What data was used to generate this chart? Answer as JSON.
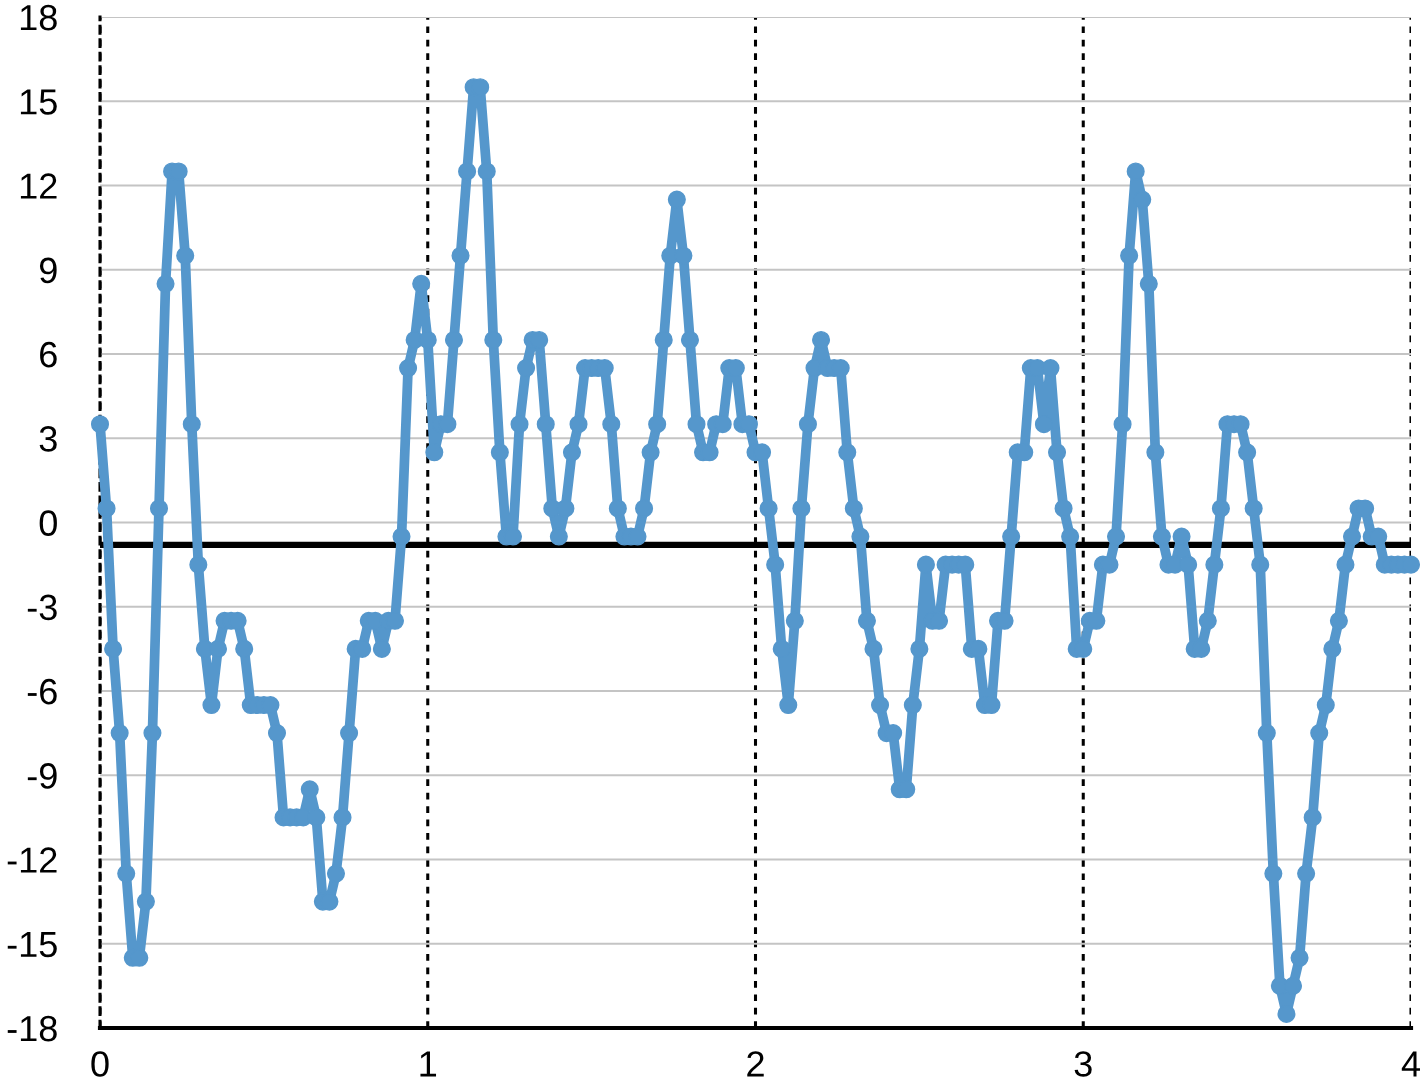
{
  "chart_data": {
    "type": "line",
    "x": [
      0,
      0.02,
      0.04,
      0.06,
      0.08,
      0.1,
      0.12,
      0.14,
      0.16,
      0.18,
      0.2,
      0.22,
      0.24,
      0.26,
      0.28,
      0.3,
      0.32,
      0.34,
      0.36,
      0.38,
      0.4,
      0.42,
      0.44,
      0.46,
      0.48,
      0.5,
      0.52,
      0.54,
      0.56,
      0.58,
      0.6,
      0.62,
      0.64,
      0.66,
      0.68,
      0.7,
      0.72,
      0.74,
      0.76,
      0.78,
      0.8,
      0.82,
      0.84,
      0.86,
      0.88,
      0.9,
      0.92,
      0.94,
      0.96,
      0.98,
      1,
      1.02,
      1.04,
      1.06,
      1.08,
      1.1,
      1.12,
      1.14,
      1.16,
      1.18,
      1.2,
      1.22,
      1.24,
      1.26,
      1.28,
      1.3,
      1.32,
      1.34,
      1.36,
      1.38,
      1.4,
      1.42,
      1.44,
      1.46,
      1.48,
      1.5,
      1.52,
      1.54,
      1.56,
      1.58,
      1.6,
      1.62,
      1.64,
      1.66,
      1.68,
      1.7,
      1.72,
      1.74,
      1.76,
      1.78,
      1.8,
      1.82,
      1.84,
      1.86,
      1.88,
      1.9,
      1.92,
      1.94,
      1.96,
      1.98,
      2,
      2.02,
      2.04,
      2.06,
      2.08,
      2.1,
      2.12,
      2.14,
      2.16,
      2.18,
      2.2,
      2.22,
      2.24,
      2.26,
      2.28,
      2.3,
      2.32,
      2.34,
      2.36,
      2.38,
      2.4,
      2.42,
      2.44,
      2.46,
      2.48,
      2.5,
      2.52,
      2.54,
      2.56,
      2.58,
      2.6,
      2.62,
      2.64,
      2.66,
      2.68,
      2.7,
      2.72,
      2.74,
      2.76,
      2.78,
      2.8,
      2.82,
      2.84,
      2.86,
      2.88,
      2.9,
      2.92,
      2.94,
      2.96,
      2.98,
      3,
      3.02,
      3.04,
      3.06,
      3.08,
      3.1,
      3.12,
      3.14,
      3.16,
      3.18,
      3.2,
      3.22,
      3.24,
      3.26,
      3.28,
      3.3,
      3.32,
      3.34,
      3.36,
      3.38,
      3.4,
      3.42,
      3.44,
      3.46,
      3.48,
      3.5,
      3.52,
      3.54,
      3.56,
      3.58,
      3.6,
      3.62,
      3.64,
      3.66,
      3.68,
      3.7,
      3.72,
      3.74,
      3.76,
      3.78,
      3.8,
      3.82,
      3.84,
      3.86,
      3.88,
      3.9,
      3.92,
      3.94,
      3.96,
      3.98,
      4
    ],
    "series": [
      {
        "color": "#5597cc",
        "values": [
          3.5,
          0.5,
          -4.5,
          -7.5,
          -12.5,
          -15.5,
          -15.5,
          -13.5,
          -7.5,
          0.5,
          8.5,
          12.5,
          12.5,
          9.5,
          3.5,
          -1.5,
          -4.5,
          -6.5,
          -4.5,
          -3.5,
          -3.5,
          -3.5,
          -4.5,
          -6.5,
          -6.5,
          -6.5,
          -6.5,
          -7.5,
          -10.5,
          -10.5,
          -10.5,
          -10.5,
          -9.5,
          -10.5,
          -13.5,
          -13.5,
          -12.5,
          -10.5,
          -7.5,
          -4.5,
          -4.5,
          -3.5,
          -3.5,
          -4.5,
          -3.5,
          -3.5,
          -0.5,
          5.5,
          6.5,
          8.5,
          6.5,
          2.5,
          3.5,
          3.5,
          6.5,
          9.5,
          12.5,
          15.5,
          15.5,
          12.5,
          6.5,
          2.5,
          -0.5,
          -0.5,
          3.5,
          5.5,
          6.5,
          6.5,
          3.5,
          0.5,
          -0.5,
          0.5,
          2.5,
          3.5,
          5.5,
          5.5,
          5.5,
          5.5,
          3.5,
          0.5,
          -0.5,
          -0.5,
          -0.5,
          0.5,
          2.5,
          3.5,
          6.5,
          9.5,
          11.5,
          9.5,
          6.5,
          3.5,
          2.5,
          2.5,
          3.5,
          3.5,
          5.5,
          5.5,
          3.5,
          3.5,
          2.5,
          2.5,
          0.5,
          -1.5,
          -4.5,
          -6.5,
          -3.5,
          0.5,
          3.5,
          5.5,
          6.5,
          5.5,
          5.5,
          5.5,
          2.5,
          0.5,
          -0.5,
          -3.5,
          -4.5,
          -6.5,
          -7.5,
          -7.5,
          -9.5,
          -9.5,
          -6.5,
          -4.5,
          -1.5,
          -3.5,
          -3.5,
          -1.5,
          -1.5,
          -1.5,
          -1.5,
          -4.5,
          -4.5,
          -6.5,
          -6.5,
          -3.5,
          -3.5,
          -0.5,
          2.5,
          2.5,
          5.5,
          5.5,
          3.5,
          5.5,
          2.5,
          0.5,
          -0.5,
          -4.5,
          -4.5,
          -3.5,
          -3.5,
          -1.5,
          -1.5,
          -0.5,
          3.5,
          9.5,
          12.5,
          11.5,
          8.5,
          2.5,
          -0.5,
          -1.5,
          -1.5,
          -0.5,
          -1.5,
          -4.5,
          -4.5,
          -3.5,
          -1.5,
          0.5,
          3.5,
          3.5,
          3.5,
          2.5,
          0.5,
          -1.5,
          -7.5,
          -12.5,
          -16.5,
          -17.5,
          -16.5,
          -15.5,
          -12.5,
          -10.5,
          -7.5,
          -6.5,
          -4.5,
          -3.5,
          -1.5,
          -0.5,
          0.5,
          0.5,
          -0.5,
          -0.5,
          -1.5,
          -1.5,
          -1.5,
          -1.5,
          -1.5
        ]
      }
    ],
    "xlim": [
      0,
      4
    ],
    "ylim": [
      -18,
      18
    ],
    "xticks": [
      0,
      1,
      2,
      3,
      4
    ],
    "yticks": [
      -18,
      -15,
      -12,
      -9,
      -6,
      -3,
      0,
      3,
      6,
      9,
      12,
      15,
      18
    ],
    "grid": true,
    "marker": "circle",
    "line_style": "solid",
    "ref_lines": [
      {
        "axis": "y",
        "value": -0.8,
        "color": "#000000",
        "line_style": "solid"
      }
    ]
  }
}
